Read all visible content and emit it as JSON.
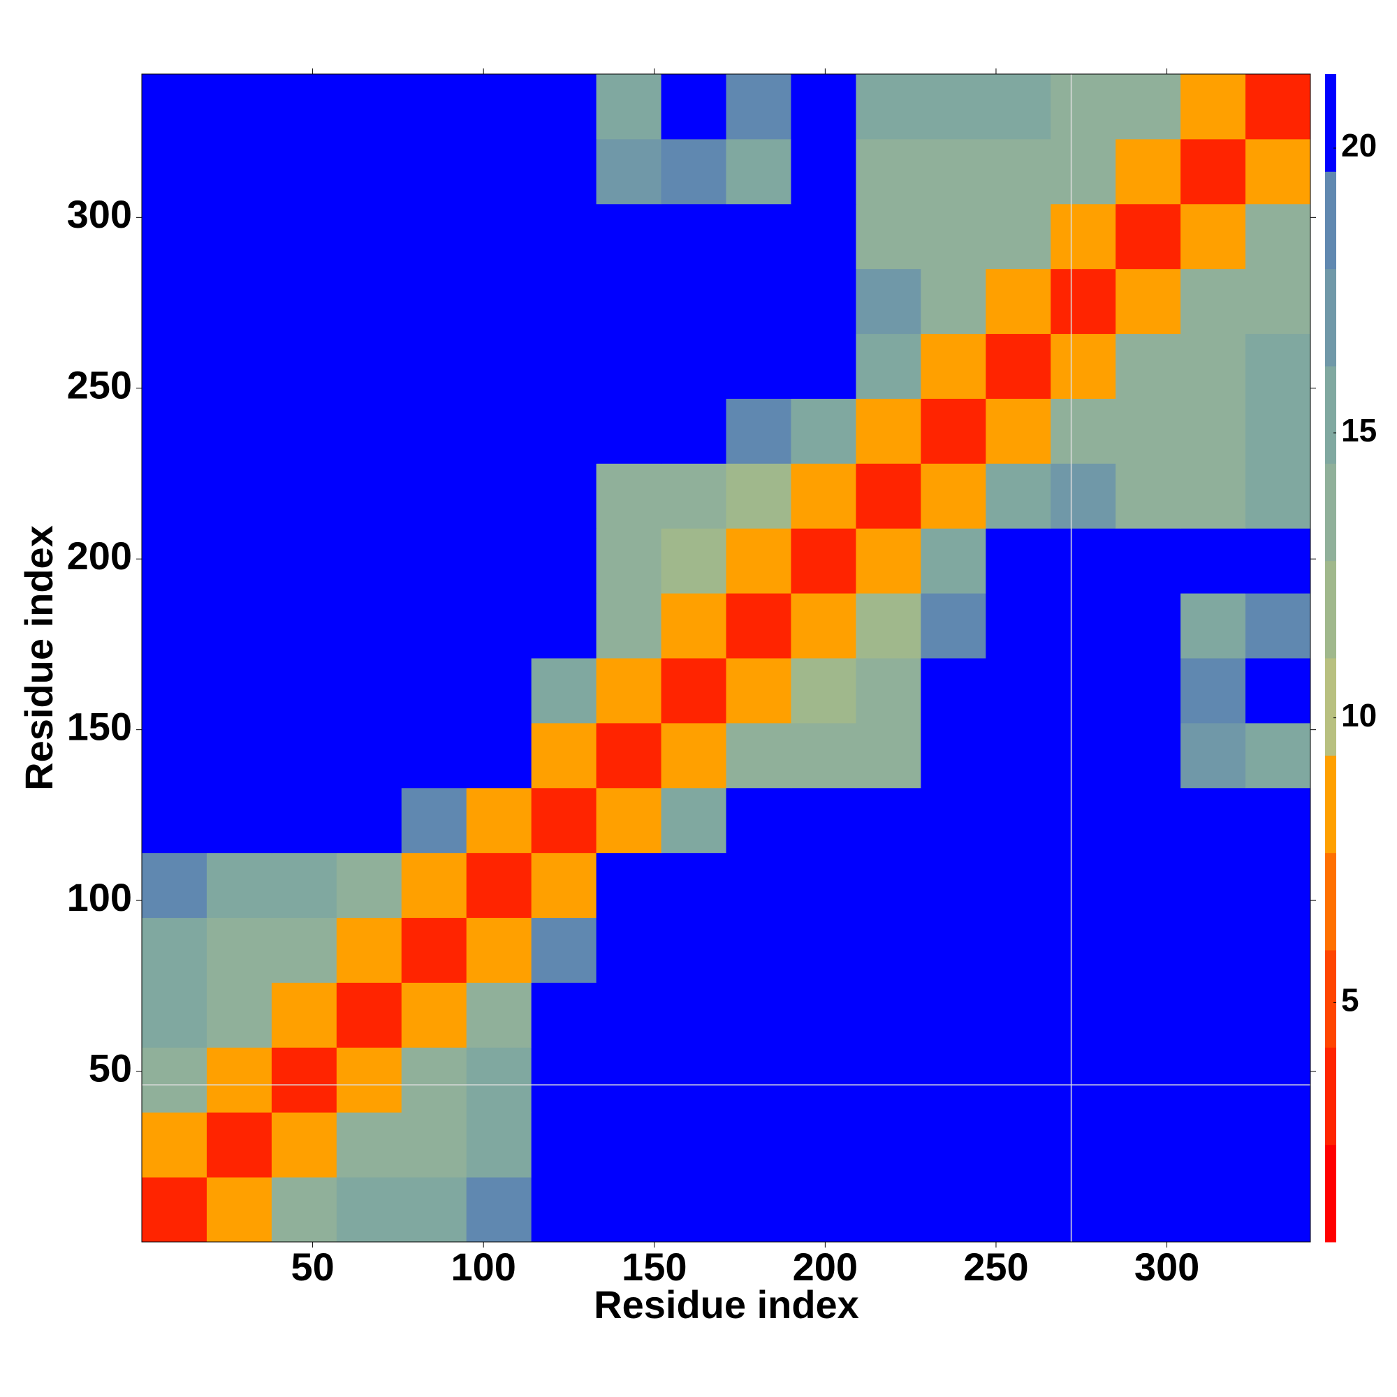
{
  "chart_data": {
    "type": "heatmap",
    "xlabel": "Residue index",
    "ylabel": "Residue index",
    "x_bins": [
      0,
      19,
      38,
      57,
      76,
      95,
      114,
      133,
      152,
      171,
      190,
      209,
      228,
      247,
      266,
      285,
      304,
      323,
      342
    ],
    "y_bins": [
      0,
      19,
      38,
      57,
      76,
      95,
      114,
      133,
      152,
      171,
      190,
      209,
      228,
      247,
      266,
      285,
      304,
      323,
      342
    ],
    "z": [
      [
        3,
        9,
        14,
        15,
        16,
        18,
        21,
        21,
        21,
        21,
        21,
        21,
        21,
        21,
        21,
        21,
        21,
        21
      ],
      [
        9,
        3,
        9,
        13,
        14,
        15,
        21,
        21,
        21,
        21,
        21,
        21,
        21,
        21,
        21,
        21,
        21,
        21
      ],
      [
        14,
        9,
        3,
        9,
        13,
        15,
        21,
        21,
        21,
        21,
        21,
        21,
        21,
        21,
        21,
        21,
        21,
        21
      ],
      [
        15,
        13,
        9,
        3,
        9,
        13,
        21,
        21,
        21,
        21,
        21,
        21,
        21,
        21,
        21,
        21,
        21,
        21
      ],
      [
        16,
        14,
        13,
        9,
        3,
        8,
        19,
        21,
        21,
        21,
        21,
        21,
        21,
        21,
        21,
        21,
        21,
        21
      ],
      [
        18,
        15,
        15,
        13,
        8,
        3,
        9,
        21,
        21,
        21,
        21,
        21,
        21,
        21,
        21,
        21,
        21,
        21
      ],
      [
        21,
        21,
        21,
        21,
        19,
        9,
        3,
        9,
        16,
        21,
        21,
        21,
        21,
        21,
        21,
        21,
        21,
        21
      ],
      [
        21,
        21,
        21,
        21,
        21,
        21,
        9,
        3,
        9,
        13,
        14,
        14,
        21,
        21,
        21,
        21,
        17,
        16
      ],
      [
        21,
        21,
        21,
        21,
        21,
        21,
        16,
        9,
        3,
        9,
        12,
        13,
        21,
        21,
        21,
        21,
        18,
        21
      ],
      [
        21,
        21,
        21,
        21,
        21,
        21,
        21,
        13,
        9,
        3,
        8,
        12,
        19,
        21,
        21,
        21,
        16,
        18
      ],
      [
        21,
        21,
        21,
        21,
        21,
        21,
        21,
        14,
        12,
        8,
        3,
        8,
        15,
        21,
        21,
        21,
        21,
        21
      ],
      [
        21,
        21,
        21,
        21,
        21,
        21,
        21,
        14,
        13,
        12,
        8,
        3,
        9,
        15,
        17,
        14,
        14,
        16
      ],
      [
        21,
        21,
        21,
        21,
        21,
        21,
        21,
        21,
        21,
        19,
        15,
        9,
        3,
        9,
        14,
        14,
        14,
        15
      ],
      [
        21,
        21,
        21,
        21,
        21,
        21,
        21,
        21,
        21,
        21,
        21,
        15,
        9,
        3,
        9,
        13,
        14,
        15
      ],
      [
        21,
        21,
        21,
        21,
        21,
        21,
        21,
        21,
        21,
        21,
        21,
        17,
        14,
        9,
        3,
        9,
        13,
        14
      ],
      [
        21,
        21,
        21,
        21,
        21,
        21,
        21,
        21,
        21,
        21,
        21,
        14,
        14,
        13,
        9,
        3,
        9,
        13
      ],
      [
        21,
        21,
        21,
        21,
        21,
        21,
        21,
        17,
        18,
        16,
        21,
        14,
        14,
        14,
        13,
        9,
        3,
        9
      ],
      [
        21,
        21,
        21,
        21,
        21,
        21,
        21,
        16,
        21,
        18,
        21,
        16,
        15,
        15,
        14,
        13,
        9,
        3
      ]
    ],
    "xlim": [
      0,
      342
    ],
    "ylim": [
      0,
      342
    ],
    "xticks": [
      50,
      100,
      150,
      200,
      250,
      300
    ],
    "yticks": [
      50,
      100,
      150,
      200,
      250,
      300
    ],
    "clim": [
      0.8,
      21.3
    ],
    "cticks": [
      5,
      10,
      15,
      20
    ],
    "colorscale": [
      "#ff0000",
      "#ff2400",
      "#ff4500",
      "#ff7000",
      "#ffa000",
      "#b8c080",
      "#a0b88c",
      "#90b09a",
      "#80a8a0",
      "#7098a8",
      "#6088b0",
      "#0000ff"
    ],
    "vlines": [
      272
    ],
    "hlines": [
      46
    ]
  }
}
